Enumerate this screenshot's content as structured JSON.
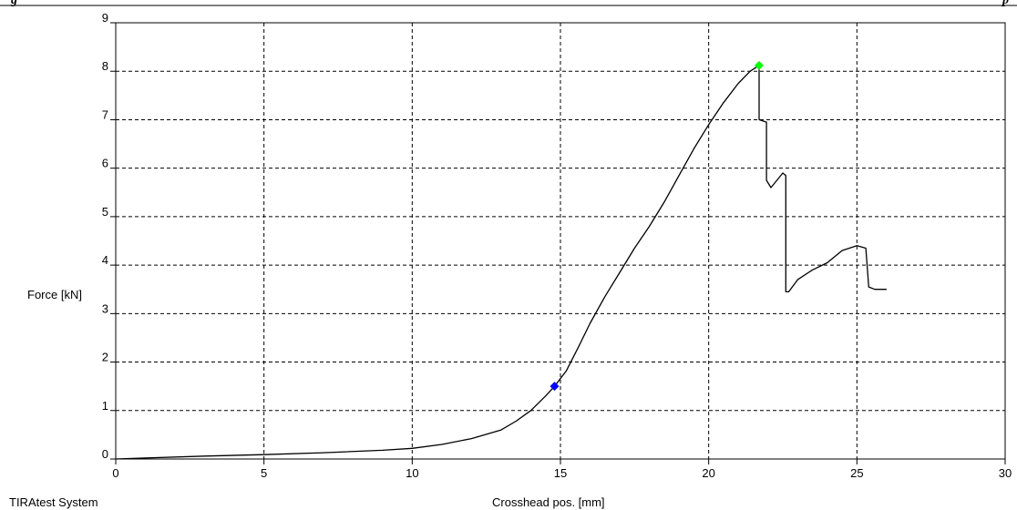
{
  "header_fragments": {
    "left": "g",
    "right": "p"
  },
  "footer": {
    "system_label": "TIRAtest System"
  },
  "chart_data": {
    "type": "line",
    "title": "",
    "xlabel": "Crosshead pos. [mm]",
    "ylabel": "Force [kN]",
    "xlim": [
      0,
      30
    ],
    "ylim": [
      0,
      9
    ],
    "x_ticks": [
      "0",
      "5",
      "10",
      "15",
      "20",
      "25",
      "30"
    ],
    "y_ticks": [
      "0",
      "1",
      "2",
      "3",
      "4",
      "5",
      "6",
      "7",
      "8",
      "9"
    ],
    "grid": true,
    "grid_style": "dashed",
    "line_color": "#000000",
    "series": [
      {
        "points": [
          [
            0.0,
            0.0
          ],
          [
            1.0,
            0.02
          ],
          [
            3.0,
            0.06
          ],
          [
            5.0,
            0.09
          ],
          [
            7.0,
            0.13
          ],
          [
            9.0,
            0.18
          ],
          [
            10.0,
            0.22
          ],
          [
            11.0,
            0.3
          ],
          [
            12.0,
            0.42
          ],
          [
            13.0,
            0.6
          ],
          [
            13.5,
            0.78
          ],
          [
            14.0,
            1.0
          ],
          [
            14.5,
            1.3
          ],
          [
            14.8,
            1.5
          ],
          [
            15.2,
            1.82
          ],
          [
            15.6,
            2.3
          ],
          [
            16.0,
            2.8
          ],
          [
            16.5,
            3.35
          ],
          [
            17.0,
            3.85
          ],
          [
            17.5,
            4.35
          ],
          [
            18.0,
            4.8
          ],
          [
            18.5,
            5.3
          ],
          [
            19.0,
            5.85
          ],
          [
            19.5,
            6.4
          ],
          [
            20.0,
            6.9
          ],
          [
            20.5,
            7.35
          ],
          [
            21.0,
            7.75
          ],
          [
            21.4,
            8.0
          ],
          [
            21.7,
            8.12
          ],
          [
            21.7,
            7.0
          ],
          [
            21.95,
            6.95
          ],
          [
            21.95,
            5.75
          ],
          [
            22.1,
            5.6
          ],
          [
            22.3,
            5.75
          ],
          [
            22.5,
            5.9
          ],
          [
            22.6,
            5.85
          ],
          [
            22.6,
            3.45
          ],
          [
            22.7,
            3.45
          ],
          [
            23.0,
            3.7
          ],
          [
            23.5,
            3.9
          ],
          [
            24.0,
            4.05
          ],
          [
            24.5,
            4.3
          ],
          [
            25.0,
            4.4
          ],
          [
            25.3,
            4.35
          ],
          [
            25.4,
            3.55
          ],
          [
            25.6,
            3.5
          ],
          [
            26.0,
            3.5
          ]
        ]
      }
    ],
    "markers": [
      {
        "x": 14.8,
        "y": 1.5,
        "color": "#0000ff"
      },
      {
        "x": 21.7,
        "y": 8.12,
        "color": "#00ff00"
      }
    ]
  }
}
